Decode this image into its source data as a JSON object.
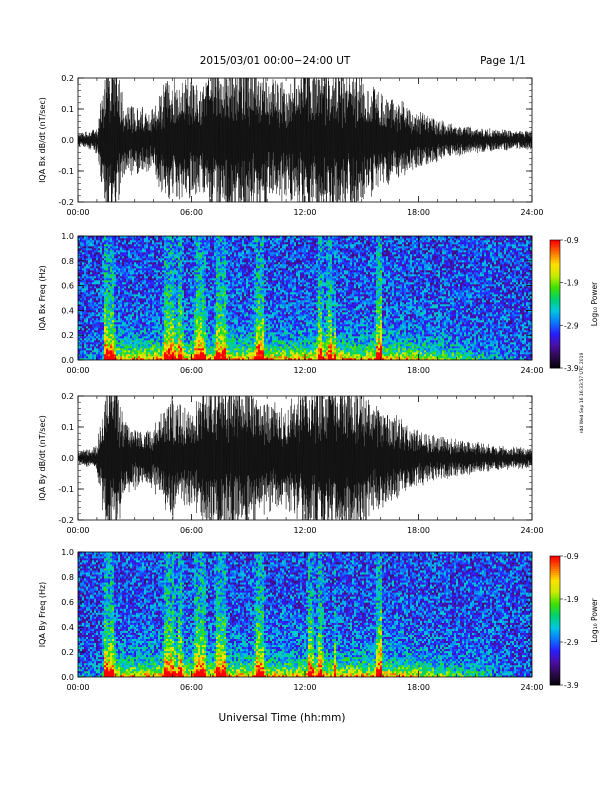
{
  "header": {
    "title": "2015/03/01   00:00−24:00 UT",
    "page": "Page 1/1"
  },
  "footer": {
    "xlabel": "Universal Time (hh:mm)",
    "stamp": "rdd Wed Sep 16 16:33:57 UTC 2019"
  },
  "colors": {
    "trace": "#000000",
    "colormap": [
      "#000000",
      "#2a0a4a",
      "#4b0fa0",
      "#2a1cff",
      "#0a78ff",
      "#00c8e0",
      "#00d070",
      "#40e000",
      "#c8ec00",
      "#ffe000",
      "#ff7000",
      "#ff0000"
    ]
  },
  "chart_data": [
    {
      "type": "line",
      "name": "panel-bx-dbdt",
      "ylabel": "IQA Bx dB/dt (nT/sec)",
      "xlim": [
        0,
        24
      ],
      "ylim": [
        -0.2,
        0.2
      ],
      "x_ticks": [
        "00:00",
        "06:00",
        "12:00",
        "18:00",
        "24:00"
      ],
      "y_ticks": [
        "-0.2",
        "-0.1",
        "0.0",
        "0.1",
        "0.2"
      ],
      "amplitude_envelope": {
        "x_hours": [
          0,
          1,
          1.5,
          2,
          2.5,
          3,
          3.5,
          4,
          4.5,
          5,
          5.5,
          6,
          6.5,
          7,
          7.5,
          8,
          9,
          10,
          11,
          12,
          13,
          14,
          15,
          16,
          17,
          18,
          19,
          20,
          21,
          22,
          23,
          24
        ],
        "amp": [
          0.02,
          0.04,
          0.25,
          0.25,
          0.1,
          0.12,
          0.1,
          0.1,
          0.18,
          0.2,
          0.18,
          0.2,
          0.16,
          0.25,
          0.25,
          0.25,
          0.25,
          0.2,
          0.18,
          0.25,
          0.25,
          0.25,
          0.2,
          0.15,
          0.12,
          0.09,
          0.07,
          0.05,
          0.04,
          0.035,
          0.03,
          0.03
        ]
      }
    },
    {
      "type": "heatmap",
      "name": "panel-bx-spectrogram",
      "ylabel": "IQA Bx Freq (Hz)",
      "xlim": [
        0,
        24
      ],
      "ylim": [
        0,
        1.0
      ],
      "x_ticks": [
        "00:00",
        "06:00",
        "12:00",
        "18:00",
        "24:00"
      ],
      "y_ticks": [
        "0.0",
        "0.2",
        "0.4",
        "0.6",
        "0.8",
        "1.0"
      ],
      "colorbar": {
        "label": "Log₁₀ Power",
        "ticks": [
          "-0.9",
          "-1.9",
          "-2.9",
          "-3.9"
        ],
        "range": [
          -3.9,
          -0.9
        ]
      },
      "bursts_hours": [
        1.5,
        1.8,
        4.7,
        5.0,
        5.4,
        6.3,
        6.6,
        7.4,
        7.7,
        9.5,
        9.7,
        12.8,
        13.3,
        15.9
      ],
      "lines_hours": [
        13.6,
        16.0
      ]
    },
    {
      "type": "line",
      "name": "panel-by-dbdt",
      "ylabel": "IQA By dB/dt (nT/sec)",
      "xlim": [
        0,
        24
      ],
      "ylim": [
        -0.2,
        0.2
      ],
      "x_ticks": [
        "00:00",
        "06:00",
        "12:00",
        "18:00",
        "24:00"
      ],
      "y_ticks": [
        "-0.2",
        "-0.1",
        "0.0",
        "0.1",
        "0.2"
      ],
      "amplitude_envelope": {
        "x_hours": [
          0,
          1,
          1.5,
          2,
          2.5,
          3,
          3.5,
          4,
          4.5,
          5,
          5.5,
          6,
          6.5,
          7,
          7.5,
          8,
          9,
          10,
          11,
          12,
          13,
          14,
          15,
          16,
          17,
          18,
          19,
          20,
          21,
          22,
          23,
          24
        ],
        "amp": [
          0.02,
          0.04,
          0.25,
          0.25,
          0.12,
          0.1,
          0.08,
          0.1,
          0.15,
          0.2,
          0.16,
          0.15,
          0.2,
          0.25,
          0.25,
          0.25,
          0.25,
          0.18,
          0.16,
          0.25,
          0.25,
          0.25,
          0.22,
          0.16,
          0.12,
          0.09,
          0.07,
          0.06,
          0.05,
          0.04,
          0.035,
          0.03
        ]
      }
    },
    {
      "type": "heatmap",
      "name": "panel-by-spectrogram",
      "ylabel": "IQA By Freq (Hz)",
      "xlim": [
        0,
        24
      ],
      "ylim": [
        0,
        1.0
      ],
      "x_ticks": [
        "00:00",
        "06:00",
        "12:00",
        "18:00",
        "24:00"
      ],
      "y_ticks": [
        "0.0",
        "0.2",
        "0.4",
        "0.6",
        "0.8",
        "1.0"
      ],
      "colorbar": {
        "label": "Log₁₀ Power",
        "ticks": [
          "-0.9",
          "-1.9",
          "-2.9",
          "-3.9"
        ],
        "range": [
          -3.9,
          -0.9
        ]
      },
      "bursts_hours": [
        1.5,
        1.8,
        4.7,
        5.0,
        5.4,
        6.3,
        6.6,
        7.4,
        7.7,
        9.5,
        9.7,
        12.3,
        12.8,
        15.9
      ],
      "lines_hours": [
        13.6,
        16.0
      ]
    }
  ]
}
